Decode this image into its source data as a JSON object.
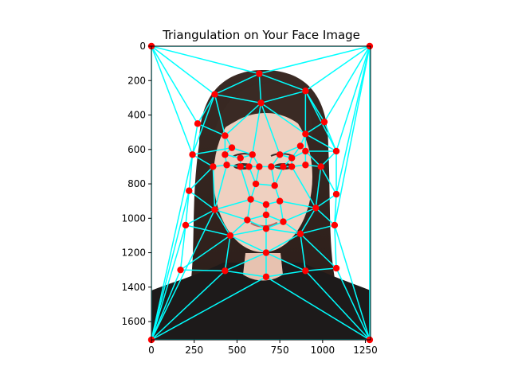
{
  "chart_data": {
    "type": "scatter",
    "title": "Triangulation on Your Face Image",
    "xlabel": "",
    "ylabel": "",
    "xlim": [
      0,
      1280
    ],
    "ylim": [
      1706,
      0
    ],
    "y_inverted": true,
    "grid": false,
    "legend": "none",
    "xticks": [
      0,
      250,
      500,
      750,
      1000,
      1250
    ],
    "yticks": [
      0,
      200,
      400,
      600,
      800,
      1000,
      1200,
      1400,
      1600
    ],
    "background_image": "face photograph (woman with long dark hair, dark top, white background)",
    "colors": {
      "points": "#ff0000",
      "edges": "#00ffff"
    },
    "points": [
      [
        0,
        0
      ],
      [
        1275,
        0
      ],
      [
        0,
        1706
      ],
      [
        1275,
        1706
      ],
      [
        630,
        160
      ],
      [
        370,
        280
      ],
      [
        900,
        260
      ],
      [
        640,
        330
      ],
      [
        270,
        450
      ],
      [
        1010,
        440
      ],
      [
        430,
        520
      ],
      [
        900,
        510
      ],
      [
        240,
        630
      ],
      [
        470,
        590
      ],
      [
        1080,
        610
      ],
      [
        870,
        580
      ],
      [
        430,
        630
      ],
      [
        590,
        630
      ],
      [
        750,
        630
      ],
      [
        900,
        610
      ],
      [
        520,
        650
      ],
      [
        820,
        650
      ],
      [
        360,
        700
      ],
      [
        440,
        690
      ],
      [
        520,
        700
      ],
      [
        570,
        700
      ],
      [
        630,
        700
      ],
      [
        700,
        700
      ],
      [
        770,
        700
      ],
      [
        820,
        700
      ],
      [
        900,
        690
      ],
      [
        990,
        700
      ],
      [
        610,
        800
      ],
      [
        720,
        810
      ],
      [
        220,
        840
      ],
      [
        1080,
        860
      ],
      [
        580,
        890
      ],
      [
        750,
        900
      ],
      [
        670,
        920
      ],
      [
        370,
        950
      ],
      [
        960,
        940
      ],
      [
        670,
        980
      ],
      [
        560,
        1010
      ],
      [
        770,
        1020
      ],
      [
        200,
        1040
      ],
      [
        1070,
        1040
      ],
      [
        670,
        1060
      ],
      [
        460,
        1100
      ],
      [
        870,
        1090
      ],
      [
        670,
        1200
      ],
      [
        170,
        1300
      ],
      [
        430,
        1305
      ],
      [
        900,
        1305
      ],
      [
        1080,
        1290
      ],
      [
        670,
        1340
      ]
    ],
    "edges": [
      [
        0,
        1
      ],
      [
        0,
        2
      ],
      [
        1,
        3
      ],
      [
        2,
        3
      ],
      [
        0,
        4
      ],
      [
        1,
        4
      ],
      [
        0,
        5
      ],
      [
        4,
        5
      ],
      [
        1,
        6
      ],
      [
        4,
        6
      ],
      [
        4,
        7
      ],
      [
        5,
        7
      ],
      [
        6,
        7
      ],
      [
        0,
        8
      ],
      [
        5,
        8
      ],
      [
        5,
        10
      ],
      [
        8,
        10
      ],
      [
        7,
        10
      ],
      [
        1,
        9
      ],
      [
        6,
        9
      ],
      [
        6,
        11
      ],
      [
        7,
        11
      ],
      [
        9,
        11
      ],
      [
        0,
        12
      ],
      [
        8,
        12
      ],
      [
        2,
        12
      ],
      [
        10,
        13
      ],
      [
        12,
        13
      ],
      [
        13,
        16
      ],
      [
        10,
        16
      ],
      [
        7,
        17
      ],
      [
        13,
        17
      ],
      [
        7,
        18
      ],
      [
        11,
        15
      ],
      [
        15,
        18
      ],
      [
        11,
        19
      ],
      [
        9,
        14
      ],
      [
        14,
        19
      ],
      [
        1,
        14
      ],
      [
        1,
        35
      ],
      [
        14,
        35
      ],
      [
        12,
        22
      ],
      [
        22,
        23
      ],
      [
        16,
        23
      ],
      [
        12,
        34
      ],
      [
        22,
        34
      ],
      [
        2,
        34
      ],
      [
        16,
        20
      ],
      [
        17,
        20
      ],
      [
        20,
        24
      ],
      [
        23,
        24
      ],
      [
        24,
        25
      ],
      [
        17,
        25
      ],
      [
        25,
        26
      ],
      [
        17,
        26
      ],
      [
        26,
        27
      ],
      [
        18,
        27
      ],
      [
        18,
        21
      ],
      [
        21,
        28
      ],
      [
        27,
        28
      ],
      [
        21,
        29
      ],
      [
        28,
        29
      ],
      [
        15,
        21
      ],
      [
        19,
        21
      ],
      [
        19,
        30
      ],
      [
        29,
        30
      ],
      [
        30,
        31
      ],
      [
        14,
        31
      ],
      [
        31,
        35
      ],
      [
        19,
        31
      ],
      [
        25,
        32
      ],
      [
        26,
        32
      ],
      [
        32,
        33
      ],
      [
        27,
        33
      ],
      [
        28,
        33
      ],
      [
        22,
        39
      ],
      [
        23,
        39
      ],
      [
        34,
        39
      ],
      [
        32,
        36
      ],
      [
        39,
        36
      ],
      [
        24,
        36
      ],
      [
        33,
        37
      ],
      [
        31,
        40
      ],
      [
        35,
        40
      ],
      [
        29,
        40
      ],
      [
        37,
        40
      ],
      [
        36,
        38
      ],
      [
        37,
        38
      ],
      [
        38,
        41
      ],
      [
        36,
        42
      ],
      [
        39,
        42
      ],
      [
        41,
        42
      ],
      [
        37,
        43
      ],
      [
        41,
        43
      ],
      [
        40,
        43
      ],
      [
        34,
        44
      ],
      [
        39,
        44
      ],
      [
        2,
        44
      ],
      [
        35,
        45
      ],
      [
        40,
        45
      ],
      [
        3,
        45
      ],
      [
        42,
        46
      ],
      [
        43,
        46
      ],
      [
        41,
        46
      ],
      [
        39,
        47
      ],
      [
        42,
        47
      ],
      [
        44,
        47
      ],
      [
        40,
        48
      ],
      [
        43,
        48
      ],
      [
        45,
        48
      ],
      [
        46,
        47
      ],
      [
        46,
        48
      ],
      [
        46,
        49
      ],
      [
        47,
        49
      ],
      [
        48,
        49
      ],
      [
        44,
        50
      ],
      [
        47,
        50
      ],
      [
        2,
        50
      ],
      [
        47,
        51
      ],
      [
        50,
        51
      ],
      [
        49,
        51
      ],
      [
        48,
        52
      ],
      [
        49,
        52
      ],
      [
        45,
        53
      ],
      [
        48,
        53
      ],
      [
        52,
        53
      ],
      [
        3,
        53
      ],
      [
        51,
        54
      ],
      [
        49,
        54
      ],
      [
        52,
        54
      ],
      [
        2,
        51
      ],
      [
        2,
        54
      ],
      [
        3,
        54
      ],
      [
        3,
        52
      ],
      [
        1,
        45
      ],
      [
        2,
        39
      ],
      [
        5,
        12
      ],
      [
        6,
        14
      ],
      [
        11,
        14
      ],
      [
        15,
        19
      ]
    ]
  }
}
